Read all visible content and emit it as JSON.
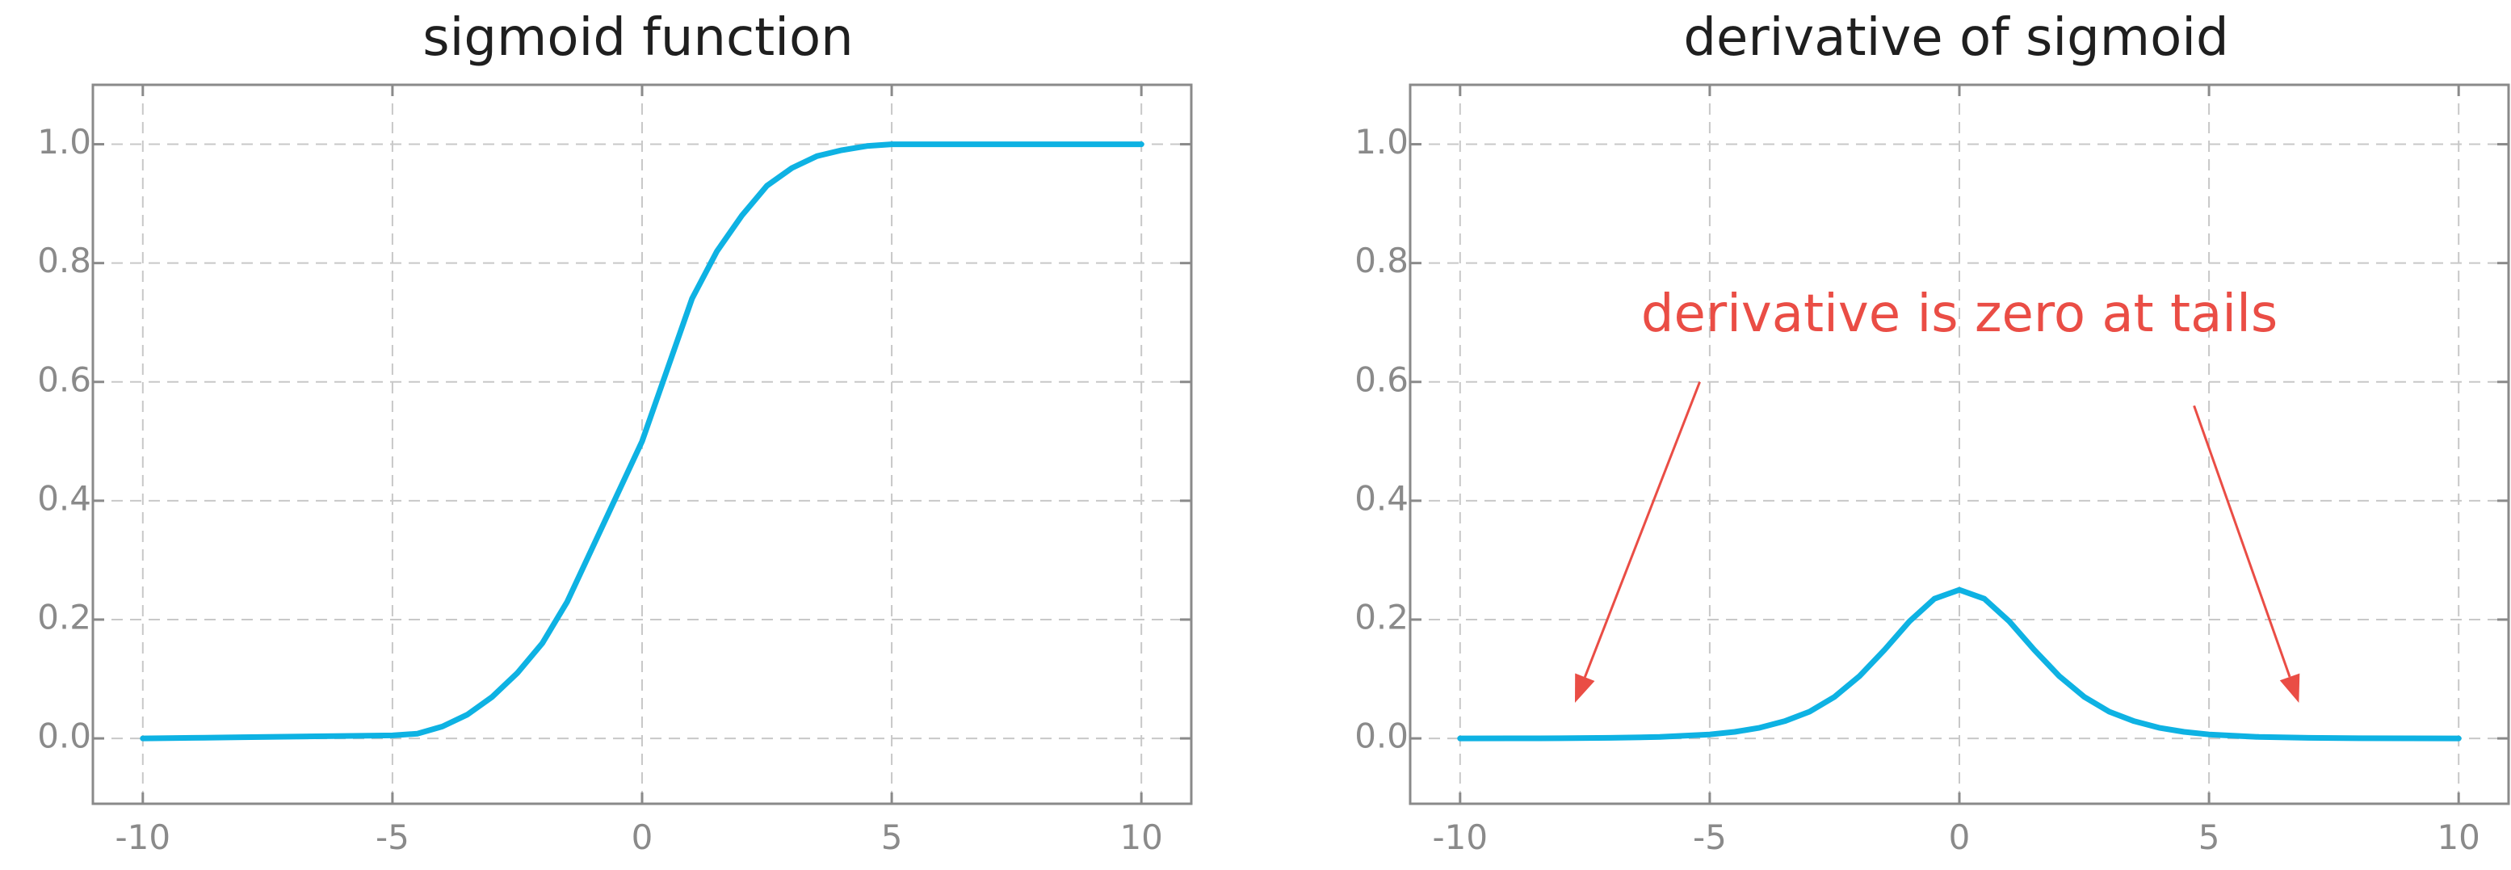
{
  "colors": {
    "curve": "#0eb2e3",
    "annotation": "#ea4d45",
    "axis": "#8a8a8a",
    "grid": "#c8c8c8"
  },
  "chart_data": [
    {
      "type": "line",
      "title": "sigmoid function",
      "xlabel": "",
      "ylabel": "",
      "xlim": [
        -11,
        11
      ],
      "ylim": [
        -0.11,
        1.1
      ],
      "xticks": [
        -10,
        -5,
        0,
        5,
        10
      ],
      "xtick_labels": [
        "-10",
        "-5",
        "0",
        "5",
        "10"
      ],
      "yticks": [
        0.0,
        0.2,
        0.4,
        0.6,
        0.8,
        1.0
      ],
      "ytick_labels": [
        "0.0",
        "0.2",
        "0.4",
        "0.6",
        "0.8",
        "1.0"
      ],
      "grid": true,
      "series": [
        {
          "x": [
            -10,
            -9,
            -8,
            -7,
            -6,
            -5,
            -4.5,
            -4,
            -3.5,
            -3,
            -2.5,
            -2,
            -1.5,
            -1,
            -0.5,
            0,
            0.5,
            1,
            1.5,
            2,
            2.5,
            3,
            3.5,
            4,
            4.5,
            5,
            6,
            7,
            8,
            9,
            10
          ],
          "values": [
            0.0,
            0.001,
            0.002,
            0.003,
            0.004,
            0.005,
            0.008,
            0.02,
            0.04,
            0.07,
            0.11,
            0.16,
            0.23,
            0.32,
            0.41,
            0.5,
            0.62,
            0.74,
            0.82,
            0.88,
            0.93,
            0.96,
            0.98,
            0.99,
            0.997,
            1.0,
            1.0,
            1.0,
            1.0,
            1.0,
            1.0
          ]
        }
      ]
    },
    {
      "type": "line",
      "title": "derivative of sigmoid",
      "xlabel": "",
      "ylabel": "",
      "xlim": [
        -11,
        11
      ],
      "ylim": [
        -0.11,
        1.1
      ],
      "xticks": [
        -10,
        -5,
        0,
        5,
        10
      ],
      "xtick_labels": [
        "-10",
        "-5",
        "0",
        "5",
        "10"
      ],
      "yticks": [
        0.0,
        0.2,
        0.4,
        0.6,
        0.8,
        1.0
      ],
      "ytick_labels": [
        "0.0",
        "0.2",
        "0.4",
        "0.6",
        "0.8",
        "1.0"
      ],
      "grid": true,
      "series": [
        {
          "x": [
            -10,
            -9,
            -8,
            -7,
            -6,
            -5,
            -4.5,
            -4,
            -3.5,
            -3,
            -2.5,
            -2,
            -1.5,
            -1,
            -0.5,
            0,
            0.5,
            1,
            1.5,
            2,
            2.5,
            3,
            3.5,
            4,
            4.5,
            5,
            6,
            7,
            8,
            9,
            10
          ],
          "values": [
            0.0,
            0.0001,
            0.0003,
            0.0009,
            0.0025,
            0.0066,
            0.011,
            0.018,
            0.029,
            0.045,
            0.07,
            0.105,
            0.149,
            0.197,
            0.235,
            0.25,
            0.235,
            0.197,
            0.149,
            0.105,
            0.07,
            0.045,
            0.029,
            0.018,
            0.011,
            0.0066,
            0.0025,
            0.0009,
            0.0003,
            0.0001,
            0.0
          ]
        }
      ],
      "annotations": [
        {
          "text": "derivative is zero at tails",
          "text_x": 0,
          "text_y": 0.685,
          "arrows": [
            {
              "from": [
                -5.2,
                0.6
              ],
              "to": [
                -7.7,
                0.06
              ]
            },
            {
              "from": [
                4.7,
                0.56
              ],
              "to": [
                6.8,
                0.06
              ]
            }
          ]
        }
      ]
    }
  ]
}
